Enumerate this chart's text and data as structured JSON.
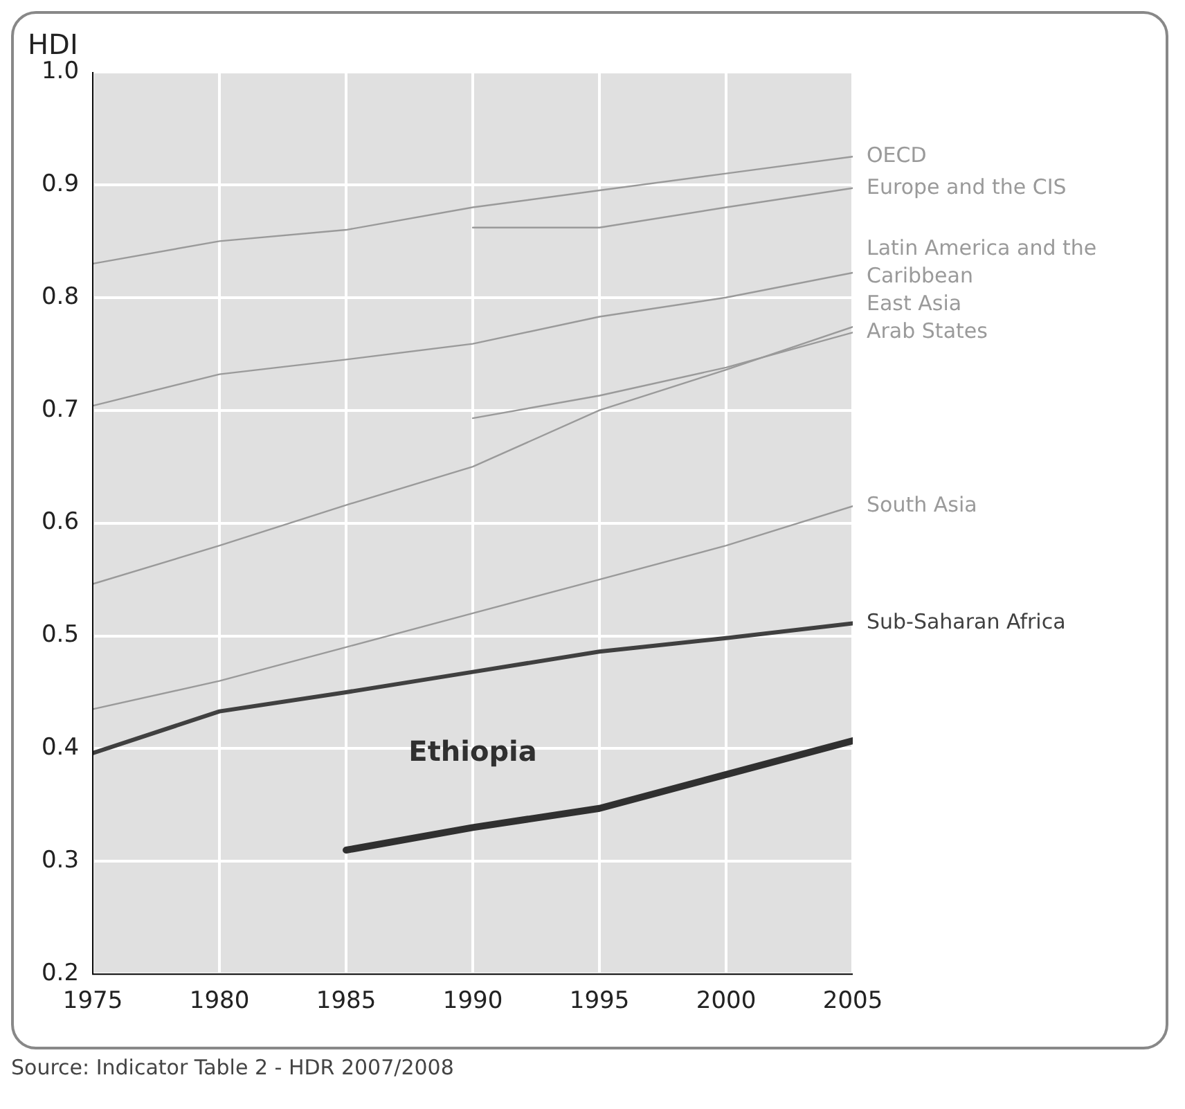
{
  "chart_data": {
    "type": "line",
    "ylabel": "HDI",
    "x": [
      1975,
      1980,
      1985,
      1990,
      1995,
      2000,
      2005
    ],
    "xlim": [
      1975,
      2005
    ],
    "xticks": [
      1975,
      1980,
      1985,
      1990,
      1995,
      2000,
      2005
    ],
    "ylim": [
      0.2,
      1.0
    ],
    "yticks": [
      0.2,
      0.3,
      0.4,
      0.5,
      0.6,
      0.7,
      0.8,
      0.9,
      {
        "value": 1.0,
        "label": "1.0"
      }
    ],
    "grid": true,
    "legend": false,
    "marker": "none",
    "line_style": "solid",
    "series": [
      {
        "name": "OECD",
        "color": "#9a9a9a",
        "values": [
          0.83,
          0.85,
          0.86,
          0.88,
          0.895,
          0.91,
          0.925
        ]
      },
      {
        "name": "Europe and the CIS",
        "color": "#9a9a9a",
        "values": [
          null,
          null,
          null,
          0.862,
          0.862,
          0.88,
          0.897
        ]
      },
      {
        "name": "Latin America and the Caribbean",
        "color": "#9a9a9a",
        "values": [
          0.704,
          0.732,
          0.745,
          0.759,
          0.783,
          0.8,
          0.822
        ]
      },
      {
        "name": "East Asia",
        "color": "#9a9a9a",
        "values": [
          0.546,
          0.58,
          0.616,
          0.65,
          0.7,
          0.736,
          0.774
        ]
      },
      {
        "name": "Arab States",
        "color": "#9a9a9a",
        "values": [
          null,
          null,
          null,
          0.693,
          0.713,
          0.738,
          0.769
        ]
      },
      {
        "name": "South Asia",
        "color": "#9a9a9a",
        "values": [
          0.435,
          0.46,
          0.49,
          0.52,
          0.55,
          0.58,
          0.615
        ]
      },
      {
        "name": "Sub-Saharan Africa",
        "color": "#404040",
        "values": [
          0.396,
          0.433,
          0.45,
          0.468,
          0.486,
          0.498,
          0.511
        ]
      },
      {
        "name": "Ethiopia",
        "color": "#303030",
        "values": [
          null,
          null,
          0.31,
          0.33,
          0.347,
          0.377,
          0.407
        ]
      }
    ],
    "annotations": [
      "Source: Indicator Table 2 - HDR 2007/2008"
    ]
  }
}
